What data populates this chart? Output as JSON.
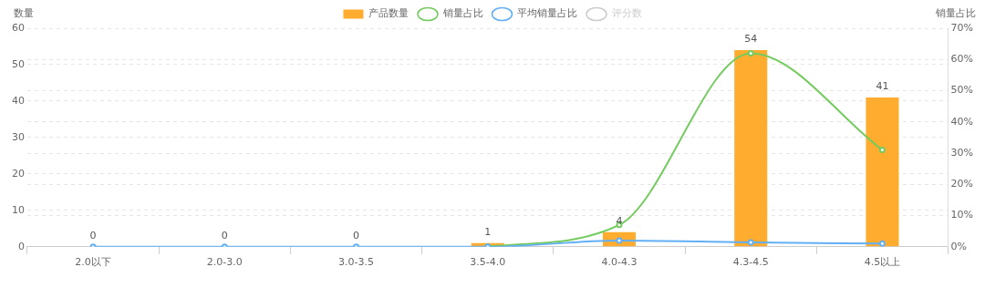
{
  "chart_data": {
    "type": "bar",
    "categories": [
      "2.0以下",
      "2.0-3.0",
      "3.0-3.5",
      "3.5-4.0",
      "4.0-4.3",
      "4.3-4.5",
      "4.5以上"
    ],
    "ylabel": "数量",
    "y2label": "销量占比",
    "series": [
      {
        "name": "产品数量",
        "color": "#ffac2f",
        "values": [
          0,
          0,
          0,
          1,
          4,
          54,
          41
        ],
        "value_labels": [
          "0",
          "0",
          "0",
          "1",
          "4",
          "54",
          "41"
        ]
      },
      {
        "name": "销量占比",
        "type": "line",
        "axis": "y2",
        "color": "#74cb5f",
        "values": [
          null,
          null,
          null,
          0,
          7,
          62,
          31
        ]
      },
      {
        "name": "平均销量占比",
        "type": "line",
        "axis": "y2",
        "color": "#62aff5",
        "values": [
          0,
          0,
          0,
          0,
          2,
          1.4,
          1
        ]
      },
      {
        "name": "评分数",
        "type": "line",
        "axis": "y2",
        "color": "#cccccc",
        "values": [
          null,
          null,
          null,
          null,
          null,
          null,
          null
        ]
      }
    ],
    "ylim": [
      0,
      60
    ],
    "yticks": [
      0,
      10,
      20,
      30,
      40,
      50,
      60
    ],
    "y2lim": [
      0,
      70
    ],
    "y2ticks": [
      {
        "value": 0,
        "label": "0%"
      },
      {
        "value": 10,
        "label": "10%"
      },
      {
        "value": 20,
        "label": "20%"
      },
      {
        "value": 30,
        "label": "30%"
      },
      {
        "value": 40,
        "label": "40%"
      },
      {
        "value": 50,
        "label": "50%"
      },
      {
        "value": 60,
        "label": "60%"
      },
      {
        "value": 70,
        "label": "70%"
      }
    ],
    "grid": true,
    "legend": "top",
    "marker": "circle",
    "line_style": "solid"
  }
}
